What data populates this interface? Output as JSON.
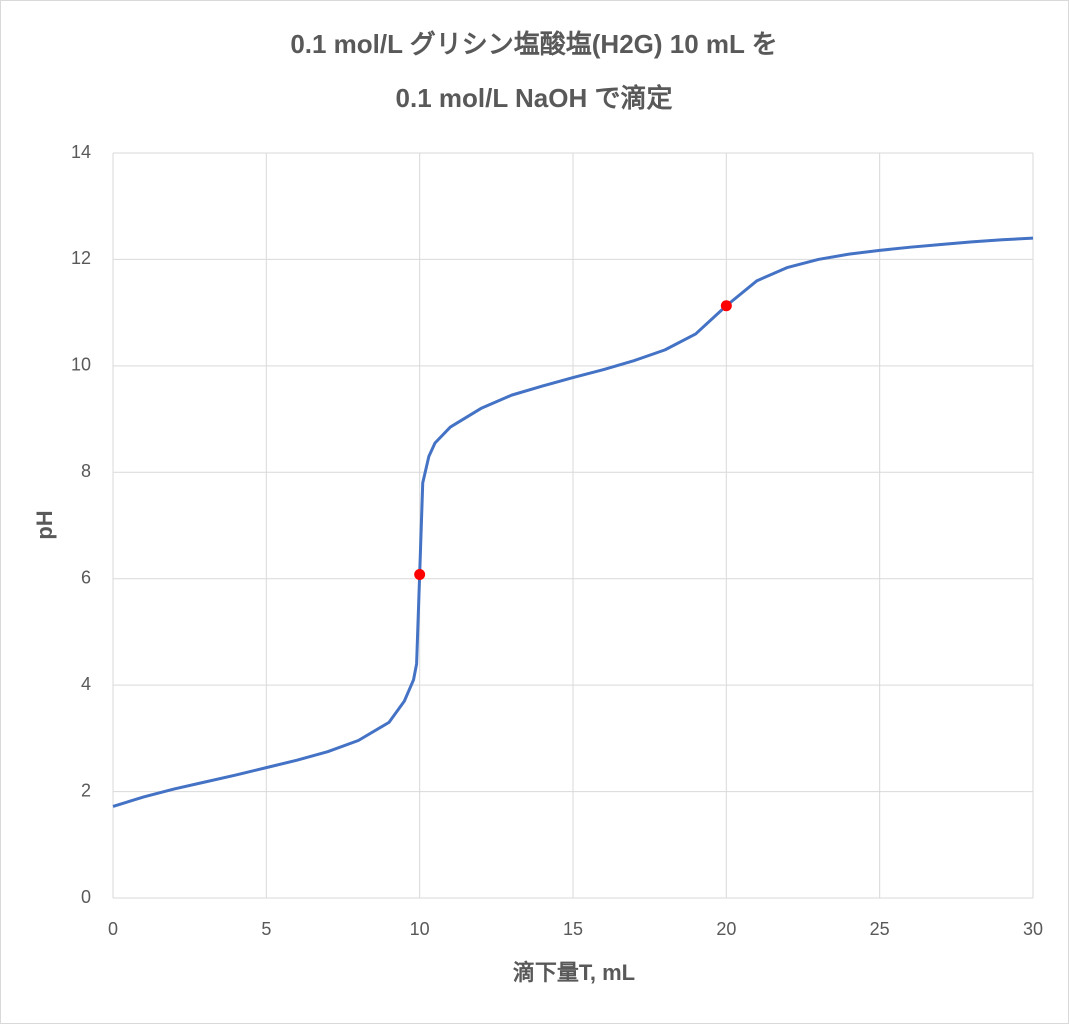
{
  "chart_data": {
    "type": "line",
    "title": [
      "0.1 mol/L グリシン塩酸塩(H2G) 10 mL を",
      "0.1 mol/L NaOH で滴定"
    ],
    "x_label": "滴下量T, mL",
    "y_label": "pH",
    "x": [
      0,
      1,
      2,
      3,
      4,
      5,
      6,
      7,
      8,
      9,
      9.5,
      9.8,
      9.9,
      10,
      10.1,
      10.3,
      10.5,
      11,
      12,
      13,
      14,
      15,
      16,
      17,
      18,
      19,
      20,
      21,
      22,
      23,
      24,
      25,
      26,
      27,
      28,
      29,
      30
    ],
    "series": [
      {
        "color": "#4472c4",
        "values": [
          1.72,
          1.9,
          2.05,
          2.18,
          2.31,
          2.45,
          2.59,
          2.75,
          2.96,
          3.3,
          3.7,
          4.1,
          4.4,
          6.08,
          7.8,
          8.3,
          8.55,
          8.85,
          9.2,
          9.45,
          9.62,
          9.78,
          9.93,
          10.1,
          10.3,
          10.6,
          11.13,
          11.6,
          11.85,
          12.0,
          12.1,
          12.17,
          12.23,
          12.28,
          12.33,
          12.37,
          12.4
        ]
      }
    ],
    "markers": {
      "color": "#ff0000",
      "x": [
        10,
        20
      ],
      "values": [
        6.08,
        11.13
      ]
    },
    "xlim": [
      0,
      30
    ],
    "xticks": [
      0,
      5,
      10,
      15,
      20,
      25,
      30
    ],
    "ylim": [
      0,
      14
    ],
    "yticks": [
      0,
      2,
      4,
      6,
      8,
      10,
      12,
      14
    ],
    "grid": true
  }
}
